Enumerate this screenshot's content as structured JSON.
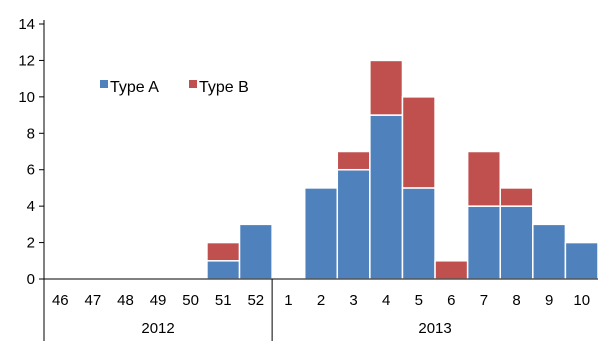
{
  "chart_data": {
    "type": "bar",
    "stacked": true,
    "categories": [
      "46",
      "47",
      "48",
      "49",
      "50",
      "51",
      "52",
      "1",
      "2",
      "3",
      "4",
      "5",
      "6",
      "7",
      "8",
      "9",
      "10"
    ],
    "groups": [
      {
        "label": "2012",
        "categories": [
          "46",
          "47",
          "48",
          "49",
          "50",
          "51",
          "52"
        ]
      },
      {
        "label": "2013",
        "categories": [
          "1",
          "2",
          "3",
          "4",
          "5",
          "6",
          "7",
          "8",
          "9",
          "10"
        ]
      }
    ],
    "series": [
      {
        "name": "Type A",
        "color": "#4f81bd",
        "values": [
          0,
          0,
          0,
          0,
          0,
          1,
          3,
          0,
          5,
          6,
          9,
          5,
          0,
          4,
          4,
          3,
          2
        ]
      },
      {
        "name": "Type B",
        "color": "#c0504d",
        "values": [
          0,
          0,
          0,
          0,
          0,
          1,
          0,
          0,
          0,
          1,
          3,
          5,
          1,
          3,
          1,
          0,
          0
        ]
      }
    ],
    "ylim": [
      0,
      14
    ],
    "yticks": [
      "0",
      "2",
      "4",
      "6",
      "8",
      "10",
      "12",
      "14"
    ],
    "title": "",
    "xlabel": "",
    "ylabel": "",
    "grid": false,
    "legend": "top-left"
  }
}
